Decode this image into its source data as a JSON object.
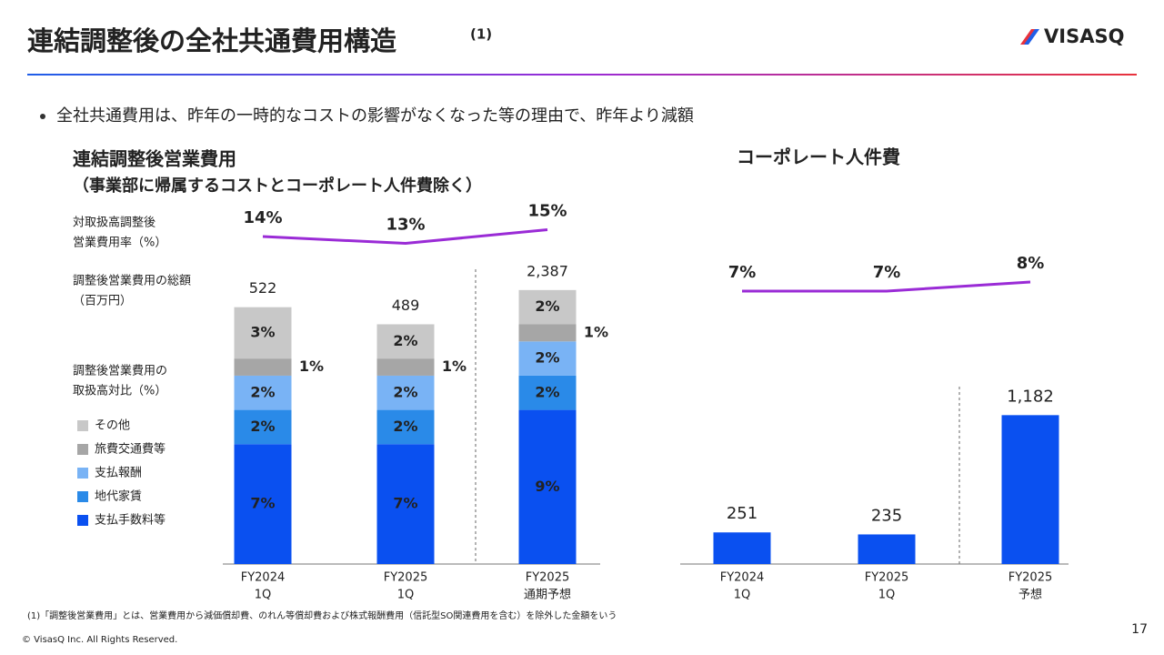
{
  "header": {
    "title": "連結調整後の全社共通費用構造",
    "title_note": "(1)",
    "logo": "VISASQ"
  },
  "bullet": "全社共通費用は、昨年の一時的なコストの影響がなくなった等の理由で、昨年より減額",
  "chart_data": [
    {
      "type": "stacked_bar",
      "title": "連結調整後営業費用",
      "subtitle": "（事業部に帰属するコストとコーポレート人件費除く）",
      "categories": [
        [
          "FY2024",
          "1Q"
        ],
        [
          "FY2025",
          "1Q"
        ],
        [
          "FY2025",
          "通期予想"
        ]
      ],
      "ylim": [
        0,
        17
      ],
      "legend": true,
      "share_label": [
        "調整後営業費用の",
        "取扱高対比（%）"
      ],
      "series": [
        {
          "name": "支払手数料等",
          "color": "#0a50f0",
          "values": [
            7,
            7,
            9
          ],
          "value_labels": [
            "7%",
            "7%",
            "9%"
          ]
        },
        {
          "name": "地代家賃",
          "color": "#2a8ae8",
          "values": [
            2,
            2,
            2
          ],
          "value_labels": [
            "2%",
            "2%",
            "2%"
          ]
        },
        {
          "name": "支払報酬",
          "color": "#79b3f5",
          "values": [
            2,
            2,
            2
          ],
          "value_labels": [
            "2%",
            "2%",
            "2%"
          ]
        },
        {
          "name": "旅費交通費等",
          "color": "#a6a6a6",
          "values": [
            1,
            1,
            1
          ],
          "value_labels": [
            "1%",
            "1%",
            "1%"
          ]
        },
        {
          "name": "その他",
          "color": "#c8c8c8",
          "values": [
            3,
            2,
            2
          ],
          "value_labels": [
            "3%",
            "2%",
            "2%"
          ]
        }
      ],
      "totals": {
        "name": [
          "調整後営業費用の総額",
          "（百万円）"
        ],
        "values": [
          522,
          489,
          2387
        ],
        "value_labels": [
          "522",
          "489",
          "2,387"
        ]
      },
      "ratio_line": {
        "name": [
          "対取扱高調整後",
          "営業費用率（%）"
        ],
        "color": "#9a2bd6",
        "values": [
          14,
          13,
          15
        ],
        "value_labels": [
          "14%",
          "13%",
          "15%"
        ],
        "ylim": [
          10,
          18
        ]
      }
    },
    {
      "type": "bar",
      "title": "コーポレート人件費",
      "categories": [
        [
          "FY2024",
          "1Q"
        ],
        [
          "FY2025",
          "1Q"
        ],
        [
          "FY2025",
          "予想"
        ]
      ],
      "values": [
        251,
        235,
        1182
      ],
      "value_labels": [
        "251",
        "235",
        "1,182"
      ],
      "color": "#0a50f0",
      "ylim": [
        0,
        1300
      ],
      "ratio_line": {
        "color": "#9a2bd6",
        "values": [
          7,
          7,
          8
        ],
        "value_labels": [
          "7%",
          "7%",
          "8%"
        ],
        "ylim": [
          4,
          12
        ]
      }
    }
  ],
  "footnote": "(1)「調整後営業費用」とは、営業費用から減価償却費、のれん等償却費および株式報酬費用（信託型SO関連費用を含む）を除外した金額をいう",
  "copyright": "© VisasQ Inc. All Rights Reserved.",
  "page_number": "17"
}
